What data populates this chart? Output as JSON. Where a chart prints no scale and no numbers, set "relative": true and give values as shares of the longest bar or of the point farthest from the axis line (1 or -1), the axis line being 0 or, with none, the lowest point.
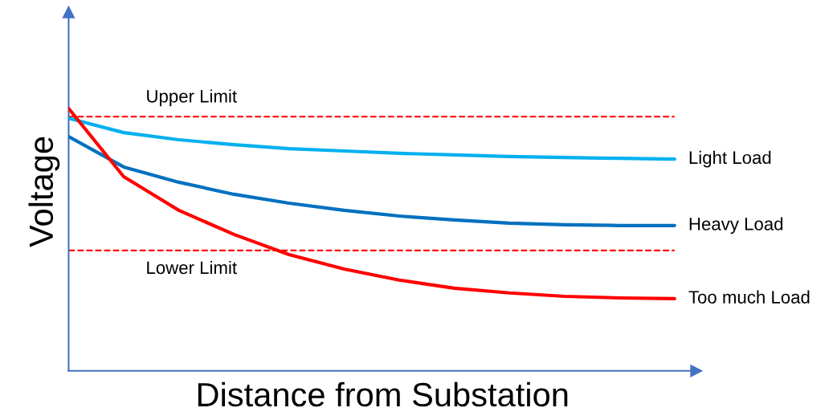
{
  "chart_data": {
    "type": "line",
    "relative": true,
    "xlabel": "Distance from Substation",
    "ylabel": "Voltage",
    "categories": [
      null,
      null,
      null,
      null,
      null,
      null,
      null,
      null,
      null,
      null,
      null,
      null
    ],
    "series": [
      {
        "name": "Light Load",
        "color": "#00b0f0",
        "values": [
          0.963,
          0.908,
          0.881,
          0.862,
          0.847,
          0.838,
          0.829,
          0.823,
          0.817,
          0.813,
          0.81,
          0.807
        ]
      },
      {
        "name": "Heavy Load",
        "color": "#0070c0",
        "values": [
          0.893,
          0.777,
          0.719,
          0.673,
          0.639,
          0.612,
          0.59,
          0.575,
          0.563,
          0.557,
          0.554,
          0.554
        ]
      },
      {
        "name": "Too much Load",
        "color": "#ff0000",
        "values": [
          1.0,
          0.74,
          0.612,
          0.52,
          0.443,
          0.388,
          0.346,
          0.315,
          0.297,
          0.284,
          0.278,
          0.275
        ]
      }
    ],
    "ref_lines": [
      {
        "axis": "y",
        "value": 0.969,
        "label": "Upper Limit",
        "color": "#ff0000",
        "line_style": "dashed"
      },
      {
        "axis": "y",
        "value": 0.459,
        "label": "Lower Limit",
        "color": "#ff0000",
        "line_style": "dashed"
      }
    ],
    "legend": false,
    "marker": "none",
    "line_style": "solid",
    "tick_labels": false
  }
}
